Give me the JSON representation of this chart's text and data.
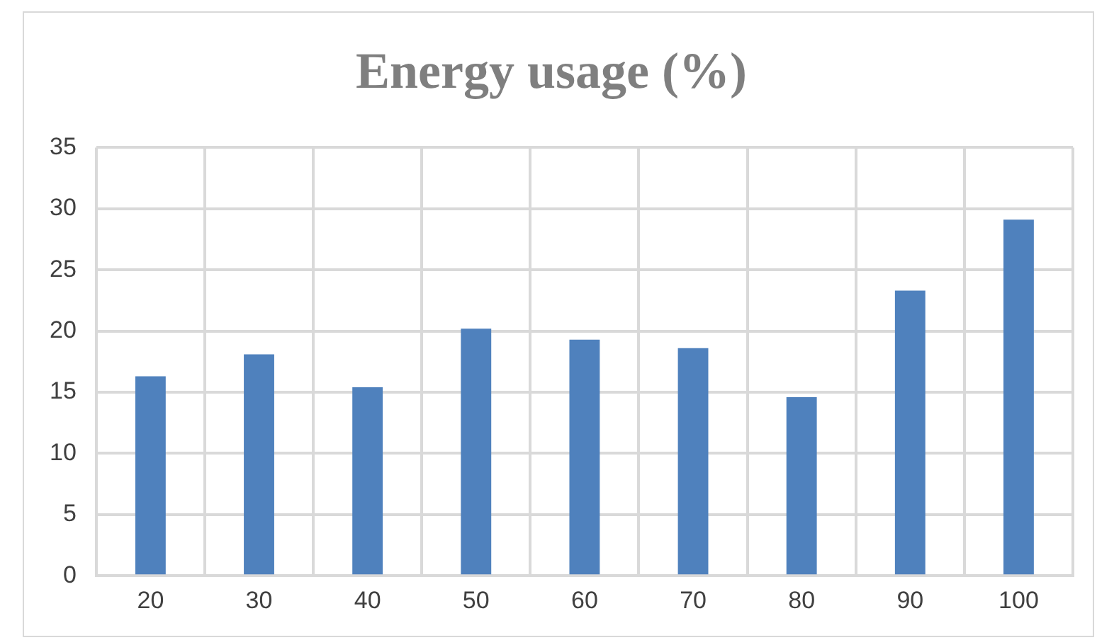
{
  "chart_data": {
    "type": "bar",
    "title": "Energy usage (%)",
    "categories": [
      "20",
      "30",
      "40",
      "50",
      "60",
      "70",
      "80",
      "90",
      "100"
    ],
    "values": [
      16.3,
      18.1,
      15.4,
      20.2,
      19.3,
      18.6,
      14.6,
      23.3,
      29.1
    ],
    "color": "#4f81bd",
    "ylim": [
      0,
      35
    ],
    "yticks": [
      0,
      5,
      10,
      15,
      20,
      25,
      30,
      35
    ],
    "grid": true,
    "legend": false
  }
}
